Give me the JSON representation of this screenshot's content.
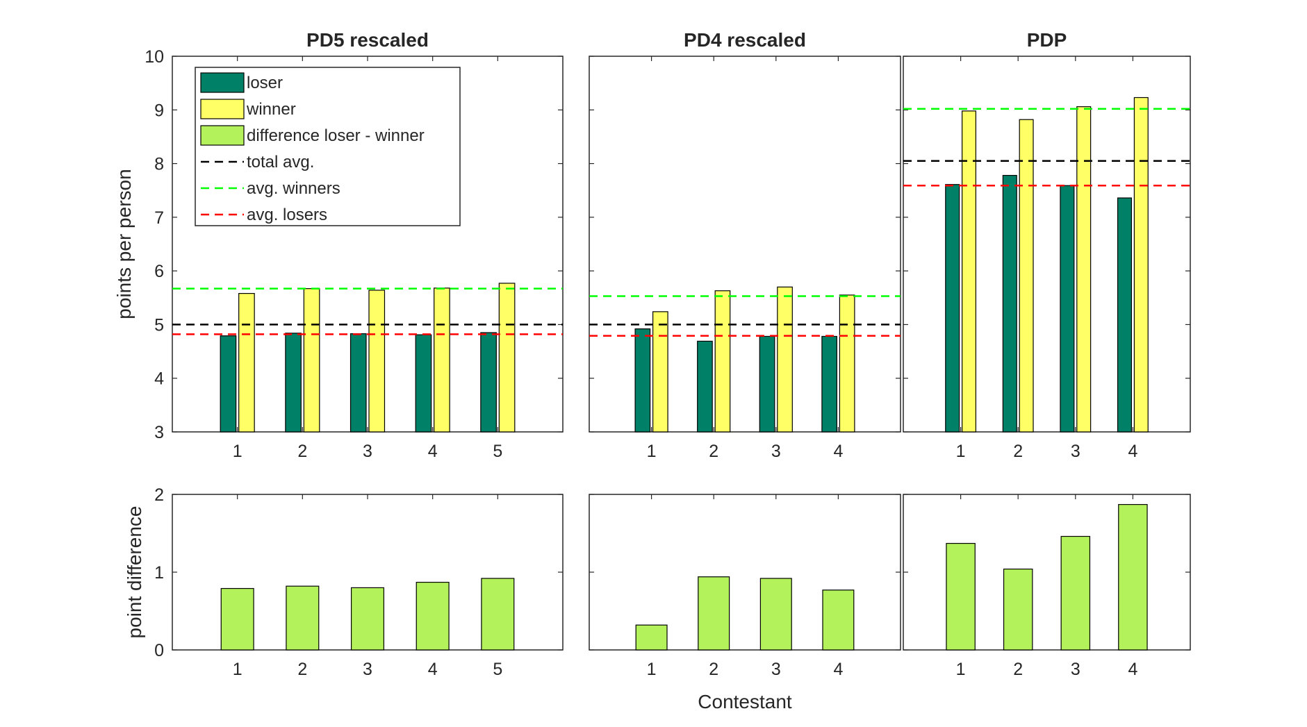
{
  "chart_data": [
    {
      "type": "bar",
      "title": "PD5 rescaled",
      "xlabel": "",
      "ylabel": "points per person",
      "ylim": [
        3,
        10
      ],
      "yticks": [
        3,
        4,
        5,
        6,
        7,
        8,
        9,
        10
      ],
      "categories": [
        "1",
        "2",
        "3",
        "4",
        "5"
      ],
      "series": [
        {
          "name": "loser",
          "color": "#008066",
          "values": [
            4.79,
            4.84,
            4.83,
            4.81,
            4.85
          ]
        },
        {
          "name": "winner",
          "color": "#ffff66",
          "values": [
            5.58,
            5.67,
            5.64,
            5.68,
            5.77
          ]
        }
      ],
      "reference_lines": [
        {
          "name": "total avg.",
          "color": "#000000",
          "value": 5.0
        },
        {
          "name": "avg. winners",
          "color": "#00ff00",
          "value": 5.67
        },
        {
          "name": "avg. losers",
          "color": "#ff0000",
          "value": 4.82
        }
      ],
      "legend": {
        "location": "top-left",
        "entries": [
          {
            "label": "loser",
            "kind": "bar",
            "color": "#008066"
          },
          {
            "label": "winner",
            "kind": "bar",
            "color": "#ffff66"
          },
          {
            "label": "difference loser - winner",
            "kind": "bar",
            "color": "#b3f25a"
          },
          {
            "label": "total avg.",
            "kind": "dash",
            "color": "#000000"
          },
          {
            "label": "avg. winners",
            "kind": "dash",
            "color": "#00ff00"
          },
          {
            "label": "avg. losers",
            "kind": "dash",
            "color": "#ff0000"
          }
        ]
      }
    },
    {
      "type": "bar",
      "title": "PD4 rescaled",
      "xlabel": "",
      "ylabel": "",
      "ylim": [
        3,
        10
      ],
      "yticks": [
        3,
        4,
        5,
        6,
        7,
        8,
        9,
        10
      ],
      "categories": [
        "1",
        "2",
        "3",
        "4"
      ],
      "series": [
        {
          "name": "loser",
          "color": "#008066",
          "values": [
            4.92,
            4.69,
            4.78,
            4.78
          ]
        },
        {
          "name": "winner",
          "color": "#ffff66",
          "values": [
            5.24,
            5.63,
            5.7,
            5.55
          ]
        }
      ],
      "reference_lines": [
        {
          "name": "total avg.",
          "color": "#000000",
          "value": 5.0
        },
        {
          "name": "avg. winners",
          "color": "#00ff00",
          "value": 5.53
        },
        {
          "name": "avg. losers",
          "color": "#ff0000",
          "value": 4.79
        }
      ]
    },
    {
      "type": "bar",
      "title": "PDP",
      "xlabel": "",
      "ylabel": "",
      "ylim": [
        3,
        10
      ],
      "yticks": [
        3,
        4,
        5,
        6,
        7,
        8,
        9,
        10
      ],
      "categories": [
        "1",
        "2",
        "3",
        "4"
      ],
      "series": [
        {
          "name": "loser",
          "color": "#008066",
          "values": [
            7.61,
            7.78,
            7.59,
            7.36
          ]
        },
        {
          "name": "winner",
          "color": "#ffff66",
          "values": [
            8.98,
            8.82,
            9.06,
            9.23
          ]
        }
      ],
      "reference_lines": [
        {
          "name": "total avg.",
          "color": "#000000",
          "value": 8.05
        },
        {
          "name": "avg. winners",
          "color": "#00ff00",
          "value": 9.02
        },
        {
          "name": "avg. losers",
          "color": "#ff0000",
          "value": 7.59
        }
      ]
    },
    {
      "type": "bar",
      "title": "",
      "xlabel": "",
      "ylabel": "point difference",
      "ylim": [
        0,
        2
      ],
      "yticks": [
        0,
        1,
        2
      ],
      "categories": [
        "1",
        "2",
        "3",
        "4",
        "5"
      ],
      "series": [
        {
          "name": "difference loser - winner",
          "color": "#b3f25a",
          "values": [
            0.79,
            0.82,
            0.8,
            0.87,
            0.92
          ]
        }
      ]
    },
    {
      "type": "bar",
      "title": "",
      "xlabel": "Contestant",
      "ylabel": "",
      "ylim": [
        0,
        2
      ],
      "yticks": [
        0,
        1,
        2
      ],
      "categories": [
        "1",
        "2",
        "3",
        "4"
      ],
      "series": [
        {
          "name": "difference loser - winner",
          "color": "#b3f25a",
          "values": [
            0.32,
            0.94,
            0.92,
            0.77
          ]
        }
      ]
    },
    {
      "type": "bar",
      "title": "",
      "xlabel": "",
      "ylabel": "",
      "ylim": [
        0,
        2
      ],
      "yticks": [
        0,
        1,
        2
      ],
      "categories": [
        "1",
        "2",
        "3",
        "4"
      ],
      "series": [
        {
          "name": "difference loser - winner",
          "color": "#b3f25a",
          "values": [
            1.37,
            1.04,
            1.46,
            1.87
          ]
        }
      ]
    }
  ]
}
